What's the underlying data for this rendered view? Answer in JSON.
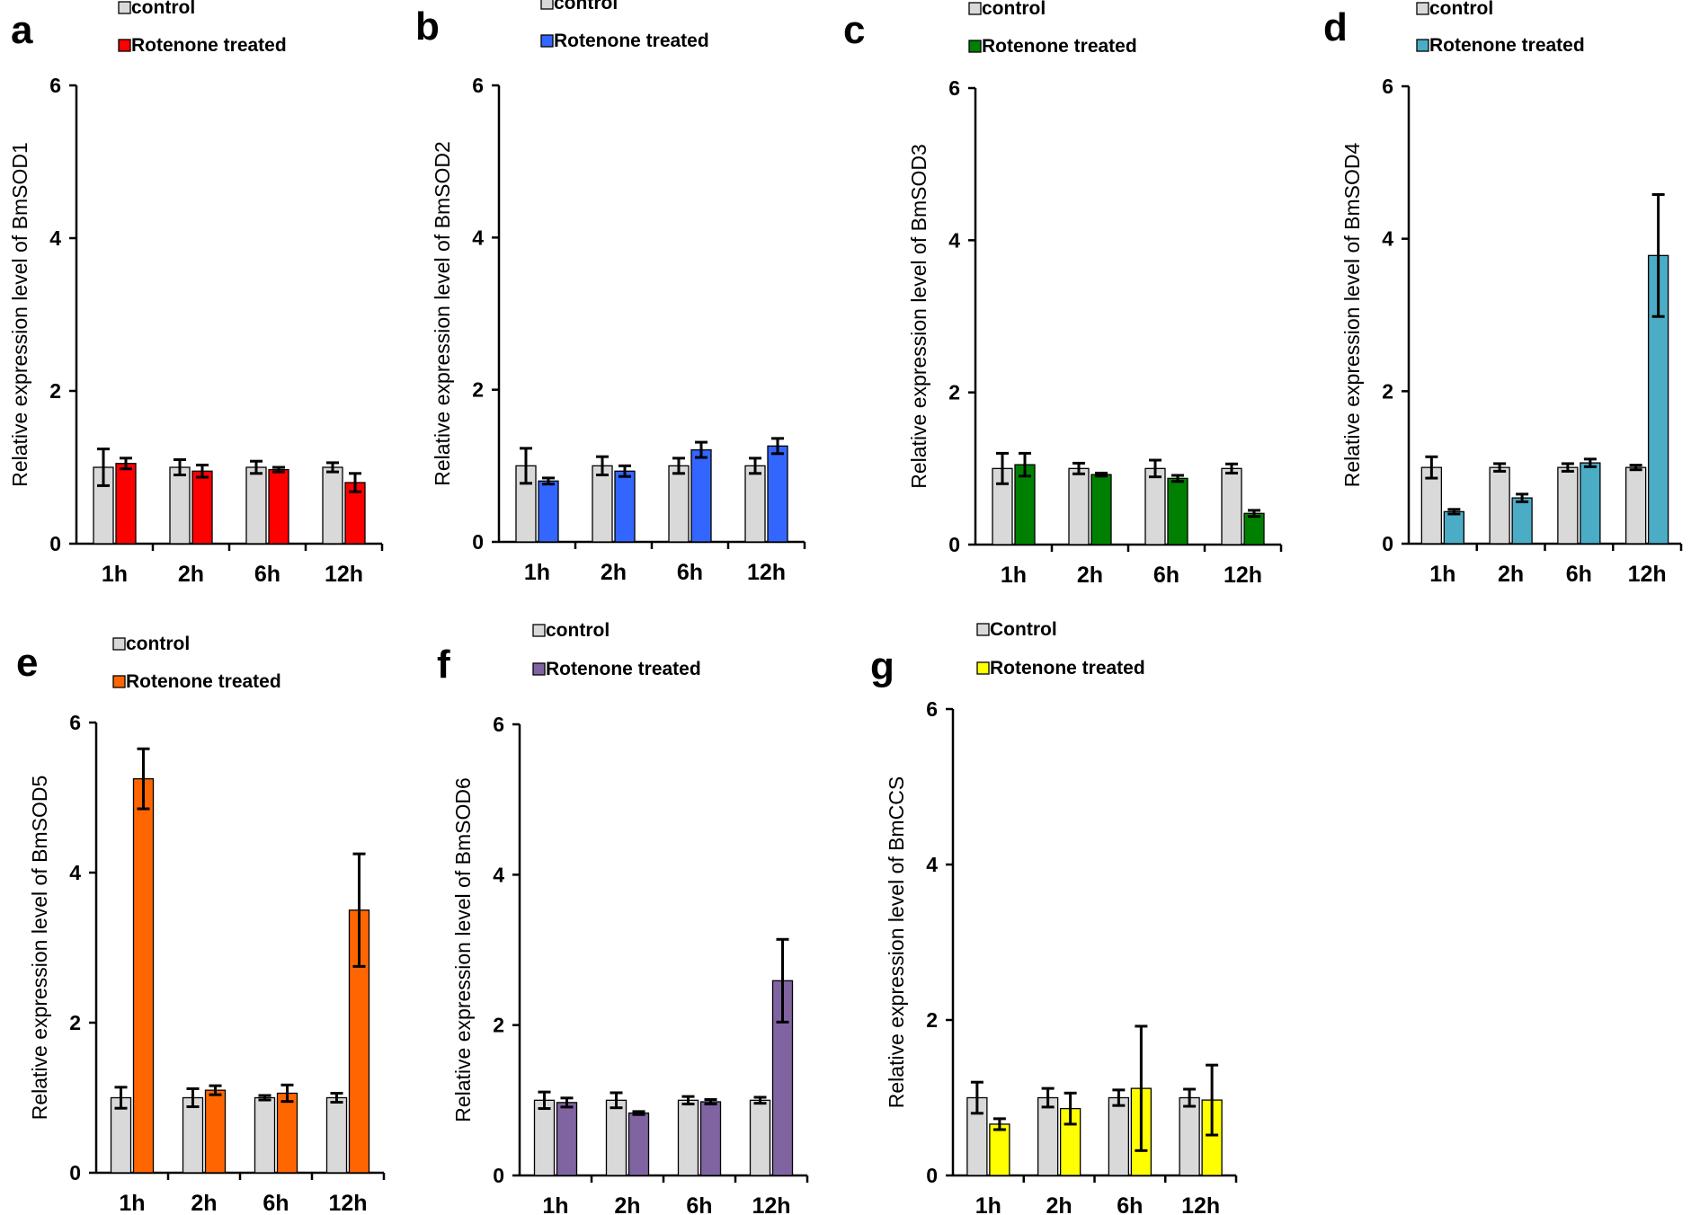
{
  "figure": {
    "panels": [
      {
        "label": "a",
        "legend": {
          "control": "control",
          "treated": "Rotenone treated"
        },
        "color": "#ff0000"
      },
      {
        "label": "b",
        "legend": {
          "control": "control",
          "treated": "Rotenone treated"
        },
        "color": "#3366ff"
      },
      {
        "label": "c",
        "legend": {
          "control": "control",
          "treated": "Rotenone treated"
        },
        "color": "#008000"
      },
      {
        "label": "d",
        "legend": {
          "control": "control",
          "treated": "Rotenone treated"
        },
        "color": "#4bacc6"
      },
      {
        "label": "e",
        "legend": {
          "control": "control",
          "treated": "Rotenone treated"
        },
        "color": "#ff6600"
      },
      {
        "label": "f",
        "legend": {
          "control": "control",
          "treated": "Rotenone treated"
        },
        "color": "#8064a2"
      },
      {
        "label": "g",
        "legend": {
          "control": "Control",
          "treated": "Rotenone treated"
        },
        "color": "#ffff00"
      }
    ]
  },
  "colors": {
    "control": "#d9d9d9",
    "axis": "#000000"
  },
  "chart_data": [
    {
      "type": "bar",
      "title": "a",
      "categories": [
        "1h",
        "2h",
        "6h",
        "12h"
      ],
      "ylabel": "Relative expression level of BmSOD1",
      "xlabel": "",
      "ylim": [
        0,
        6
      ],
      "yticks": [
        0,
        2,
        4,
        6
      ],
      "series": [
        {
          "name": "control",
          "values": [
            1.0,
            1.0,
            1.0,
            1.0
          ],
          "errors": [
            0.24,
            0.1,
            0.08,
            0.06
          ]
        },
        {
          "name": "Rotenone treated",
          "values": [
            1.05,
            0.95,
            0.97,
            0.8
          ],
          "errors": [
            0.07,
            0.08,
            0.03,
            0.12
          ]
        }
      ]
    },
    {
      "type": "bar",
      "title": "b",
      "categories": [
        "1h",
        "2h",
        "6h",
        "12h"
      ],
      "ylabel": "Relative expression level of BmSOD2",
      "xlabel": "",
      "ylim": [
        0,
        6
      ],
      "yticks": [
        0,
        2,
        4,
        6
      ],
      "series": [
        {
          "name": "control",
          "values": [
            1.0,
            1.0,
            1.0,
            1.0
          ],
          "errors": [
            0.23,
            0.12,
            0.1,
            0.1
          ]
        },
        {
          "name": "Rotenone treated",
          "values": [
            0.8,
            0.93,
            1.21,
            1.26
          ],
          "errors": [
            0.04,
            0.07,
            0.1,
            0.1
          ]
        }
      ]
    },
    {
      "type": "bar",
      "title": "c",
      "categories": [
        "1h",
        "2h",
        "6h",
        "12h"
      ],
      "ylabel": "Relative expression level of BmSOD3",
      "xlabel": "",
      "ylim": [
        0,
        6
      ],
      "yticks": [
        0,
        2,
        4,
        6
      ],
      "series": [
        {
          "name": "control",
          "values": [
            1.0,
            1.0,
            1.0,
            1.0
          ],
          "errors": [
            0.2,
            0.07,
            0.11,
            0.06
          ]
        },
        {
          "name": "Rotenone treated",
          "values": [
            1.05,
            0.92,
            0.87,
            0.41
          ],
          "errors": [
            0.15,
            0.02,
            0.04,
            0.04
          ]
        }
      ]
    },
    {
      "type": "bar",
      "title": "d",
      "categories": [
        "1h",
        "2h",
        "6h",
        "12h"
      ],
      "ylabel": "Relative expression level of BmSOD4",
      "xlabel": "",
      "ylim": [
        0,
        6
      ],
      "yticks": [
        0,
        2,
        4,
        6
      ],
      "series": [
        {
          "name": "control",
          "values": [
            1.0,
            1.0,
            1.0,
            1.0
          ],
          "errors": [
            0.14,
            0.05,
            0.05,
            0.03
          ]
        },
        {
          "name": "Rotenone treated",
          "values": [
            0.42,
            0.6,
            1.06,
            3.78
          ],
          "errors": [
            0.03,
            0.05,
            0.05,
            0.8
          ]
        }
      ]
    },
    {
      "type": "bar",
      "title": "e",
      "categories": [
        "1h",
        "2h",
        "6h",
        "12h"
      ],
      "ylabel": "Relative expression level of BmSOD5",
      "xlabel": "",
      "ylim": [
        0,
        6
      ],
      "yticks": [
        0,
        2,
        4,
        6
      ],
      "series": [
        {
          "name": "control",
          "values": [
            1.0,
            1.0,
            1.0,
            1.0
          ],
          "errors": [
            0.14,
            0.12,
            0.03,
            0.06
          ]
        },
        {
          "name": "Rotenone treated",
          "values": [
            5.25,
            1.1,
            1.06,
            3.5
          ],
          "errors": [
            0.4,
            0.06,
            0.11,
            0.75
          ]
        }
      ]
    },
    {
      "type": "bar",
      "title": "f",
      "categories": [
        "1h",
        "2h",
        "6h",
        "12h"
      ],
      "ylabel": "Relative expression level of BmSOD6",
      "xlabel": "",
      "ylim": [
        0,
        6
      ],
      "yticks": [
        0,
        2,
        4,
        6
      ],
      "series": [
        {
          "name": "control",
          "values": [
            1.0,
            1.0,
            1.0,
            1.0
          ],
          "errors": [
            0.11,
            0.1,
            0.05,
            0.04
          ]
        },
        {
          "name": "Rotenone treated",
          "values": [
            0.97,
            0.83,
            0.98,
            2.59
          ],
          "errors": [
            0.06,
            0.02,
            0.03,
            0.55
          ]
        }
      ]
    },
    {
      "type": "bar",
      "title": "g",
      "categories": [
        "1h",
        "2h",
        "6h",
        "12h"
      ],
      "ylabel": "Relative expression level of BmCCS",
      "xlabel": "",
      "ylim": [
        0,
        6
      ],
      "yticks": [
        0,
        2,
        4,
        6
      ],
      "series": [
        {
          "name": "Control",
          "values": [
            1.0,
            1.0,
            1.0,
            1.0
          ],
          "errors": [
            0.2,
            0.12,
            0.1,
            0.11
          ]
        },
        {
          "name": "Rotenone treated",
          "values": [
            0.66,
            0.86,
            1.12,
            0.97
          ],
          "errors": [
            0.07,
            0.2,
            0.8,
            0.45
          ]
        }
      ]
    }
  ]
}
